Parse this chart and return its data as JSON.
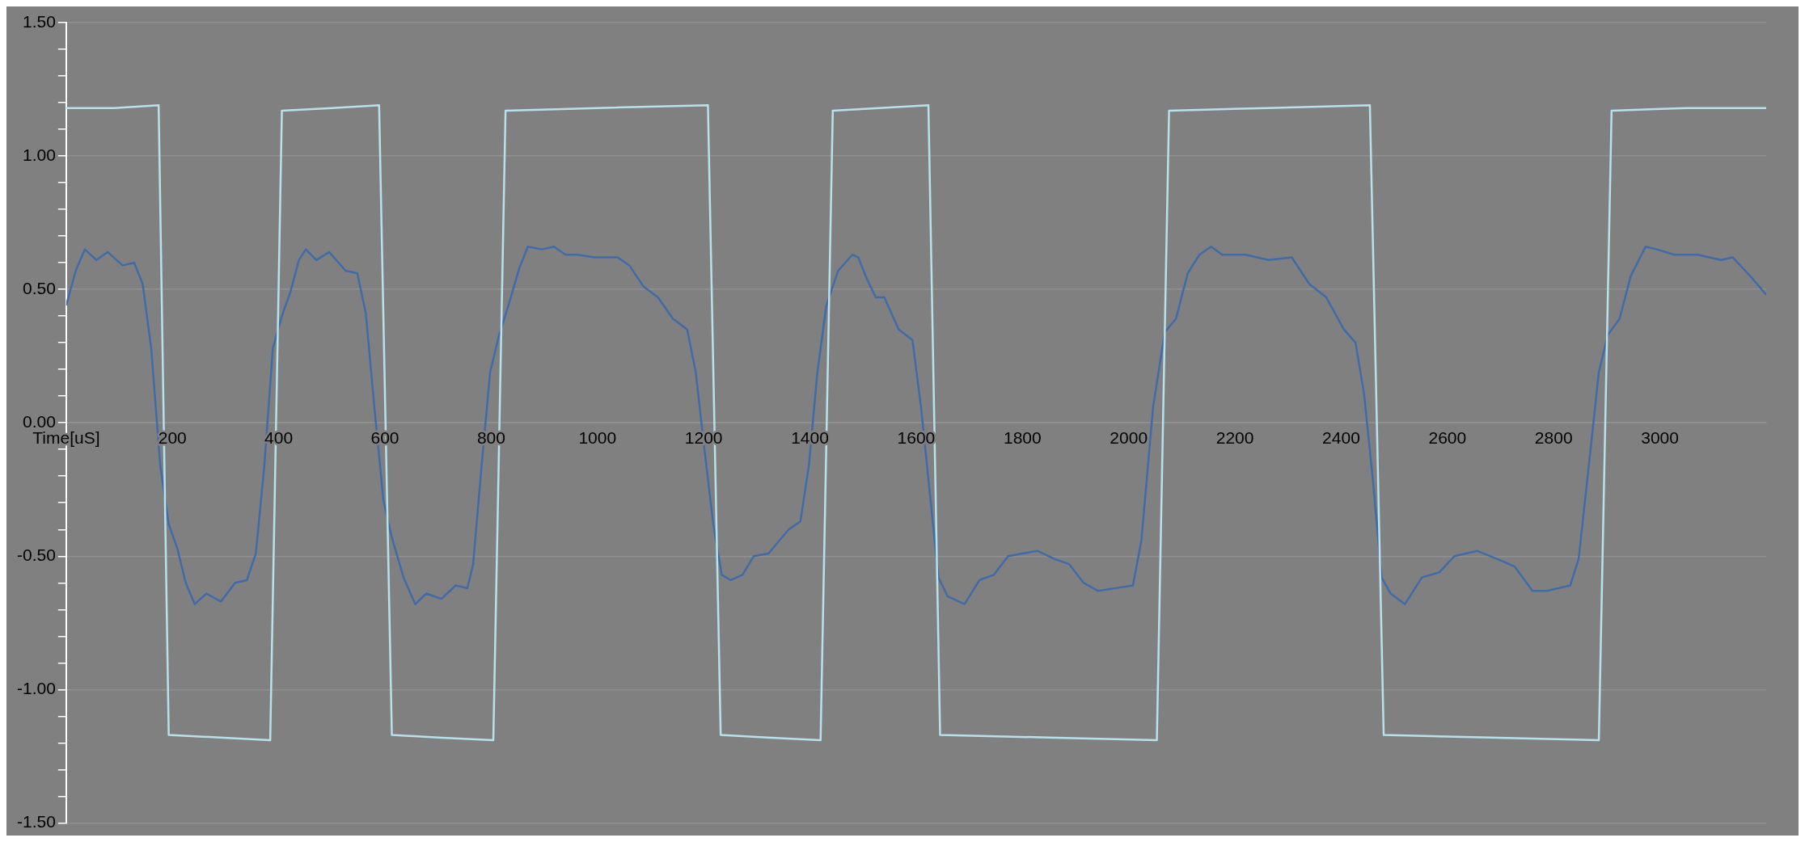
{
  "chart_data": {
    "type": "line",
    "xlim": [
      0,
      3200
    ],
    "xticks": [
      {
        "value": 0,
        "label": "Time[uS]"
      },
      200,
      400,
      600,
      800,
      1000,
      1200,
      1400,
      1600,
      1800,
      2000,
      2200,
      2400,
      2600,
      2800,
      3000
    ],
    "ylim": [
      -1.5,
      1.5
    ],
    "yticks": [
      {
        "value": -1.5,
        "label": "-1.50"
      },
      {
        "value": -1.4,
        "label": null
      },
      {
        "value": -1.3,
        "label": null
      },
      {
        "value": -1.2,
        "label": null
      },
      {
        "value": -1.1,
        "label": null
      },
      {
        "value": -1,
        "label": "-1.00"
      },
      {
        "value": -0.9,
        "label": null
      },
      {
        "value": -0.8,
        "label": null
      },
      {
        "value": -0.7,
        "label": null
      },
      {
        "value": -0.6,
        "label": null
      },
      {
        "value": -0.5,
        "label": "-0.50"
      },
      {
        "value": -0.4,
        "label": null
      },
      {
        "value": -0.3,
        "label": null
      },
      {
        "value": -0.2,
        "label": null
      },
      {
        "value": -0.1,
        "label": null
      },
      {
        "value": 0,
        "label": "0.00"
      },
      {
        "value": 0.1,
        "label": null
      },
      {
        "value": 0.2,
        "label": null
      },
      {
        "value": 0.3,
        "label": null
      },
      {
        "value": 0.4,
        "label": null
      },
      {
        "value": 0.5,
        "label": "0.50"
      },
      {
        "value": 0.6,
        "label": null
      },
      {
        "value": 0.7,
        "label": null
      },
      {
        "value": 0.8,
        "label": null
      },
      {
        "value": 0.9,
        "label": null
      },
      {
        "value": 1,
        "label": "1.00"
      },
      {
        "value": 1.1,
        "label": null
      },
      {
        "value": 1.2,
        "label": null
      },
      {
        "value": 1.3,
        "label": null
      },
      {
        "value": 1.4,
        "label": null
      },
      {
        "value": 1.5,
        "label": "1.50"
      }
    ],
    "grid": "y",
    "marker": "none",
    "series": [
      {
        "color": "#b7e1ec",
        "x": [
          0,
          90,
          174,
          193,
          290,
          384,
          406,
          500,
          589,
          613,
          700,
          804,
          827,
          1000,
          1208,
          1232,
          1320,
          1420,
          1443,
          1530,
          1623,
          1645,
          1850,
          2053,
          2076,
          2260,
          2454,
          2480,
          2680,
          2885,
          2909,
          3050,
          3200
        ],
        "values": [
          1.18,
          1.18,
          1.19,
          -1.17,
          -1.18,
          -1.19,
          1.17,
          1.18,
          1.19,
          -1.17,
          -1.18,
          -1.19,
          1.17,
          1.18,
          1.19,
          -1.17,
          -1.18,
          -1.19,
          1.17,
          1.18,
          1.19,
          -1.17,
          -1.18,
          -1.19,
          1.17,
          1.18,
          1.19,
          -1.17,
          -1.18,
          -1.19,
          1.17,
          1.18,
          1.18
        ]
      },
      {
        "color": "#3f6ca8",
        "x": [
          0,
          18,
          35,
          57,
          78,
          106,
          128,
          144,
          160,
          177,
          193,
          209,
          225,
          242,
          264,
          291,
          318,
          340,
          357,
          373,
          389,
          406,
          422,
          438,
          451,
          471,
          495,
          526,
          548,
          564,
          580,
          597,
          613,
          635,
          657,
          678,
          706,
          733,
          755,
          766,
          782,
          798,
          815,
          831,
          853,
          869,
          896,
          918,
          940,
          962,
          995,
          1038,
          1060,
          1087,
          1114,
          1142,
          1169,
          1185,
          1202,
          1218,
          1234,
          1251,
          1273,
          1294,
          1322,
          1360,
          1382,
          1398,
          1414,
          1431,
          1453,
          1480,
          1491,
          1507,
          1524,
          1540,
          1567,
          1593,
          1609,
          1626,
          1642,
          1659,
          1691,
          1719,
          1746,
          1773,
          1828,
          1860,
          1888,
          1915,
          1942,
          1975,
          2008,
          2024,
          2046,
          2068,
          2089,
          2111,
          2133,
          2155,
          2176,
          2220,
          2263,
          2307,
          2340,
          2372,
          2405,
          2427,
          2443,
          2460,
          2476,
          2493,
          2520,
          2552,
          2585,
          2613,
          2656,
          2705,
          2727,
          2760,
          2787,
          2831,
          2847,
          2864,
          2885,
          2902,
          2924,
          2945,
          2973,
          2994,
          3027,
          3071,
          3115,
          3137,
          3170,
          3200
        ],
        "values": [
          0.44,
          0.57,
          0.65,
          0.61,
          0.64,
          0.59,
          0.6,
          0.52,
          0.28,
          -0.16,
          -0.38,
          -0.47,
          -0.6,
          -0.68,
          -0.64,
          -0.67,
          -0.6,
          -0.59,
          -0.49,
          -0.16,
          0.28,
          0.4,
          0.49,
          0.61,
          0.65,
          0.61,
          0.64,
          0.57,
          0.56,
          0.41,
          0.06,
          -0.29,
          -0.43,
          -0.58,
          -0.68,
          -0.64,
          -0.66,
          -0.61,
          -0.62,
          -0.53,
          -0.16,
          0.19,
          0.33,
          0.43,
          0.58,
          0.66,
          0.65,
          0.66,
          0.63,
          0.63,
          0.62,
          0.62,
          0.59,
          0.51,
          0.47,
          0.39,
          0.35,
          0.19,
          -0.11,
          -0.38,
          -0.57,
          -0.59,
          -0.57,
          -0.5,
          -0.49,
          -0.4,
          -0.37,
          -0.16,
          0.19,
          0.44,
          0.57,
          0.63,
          0.62,
          0.54,
          0.47,
          0.47,
          0.35,
          0.31,
          0.06,
          -0.27,
          -0.58,
          -0.65,
          -0.68,
          -0.59,
          -0.57,
          -0.5,
          -0.48,
          -0.51,
          -0.53,
          -0.6,
          -0.63,
          -0.62,
          -0.61,
          -0.44,
          0.06,
          0.34,
          0.39,
          0.56,
          0.63,
          0.66,
          0.63,
          0.63,
          0.61,
          0.62,
          0.52,
          0.47,
          0.35,
          0.3,
          0.11,
          -0.22,
          -0.58,
          -0.64,
          -0.68,
          -0.58,
          -0.56,
          -0.5,
          -0.48,
          -0.52,
          -0.54,
          -0.63,
          -0.63,
          -0.61,
          -0.51,
          -0.2,
          0.19,
          0.33,
          0.39,
          0.55,
          0.66,
          0.65,
          0.63,
          0.63,
          0.61,
          0.62,
          0.55,
          0.48
        ]
      }
    ]
  }
}
